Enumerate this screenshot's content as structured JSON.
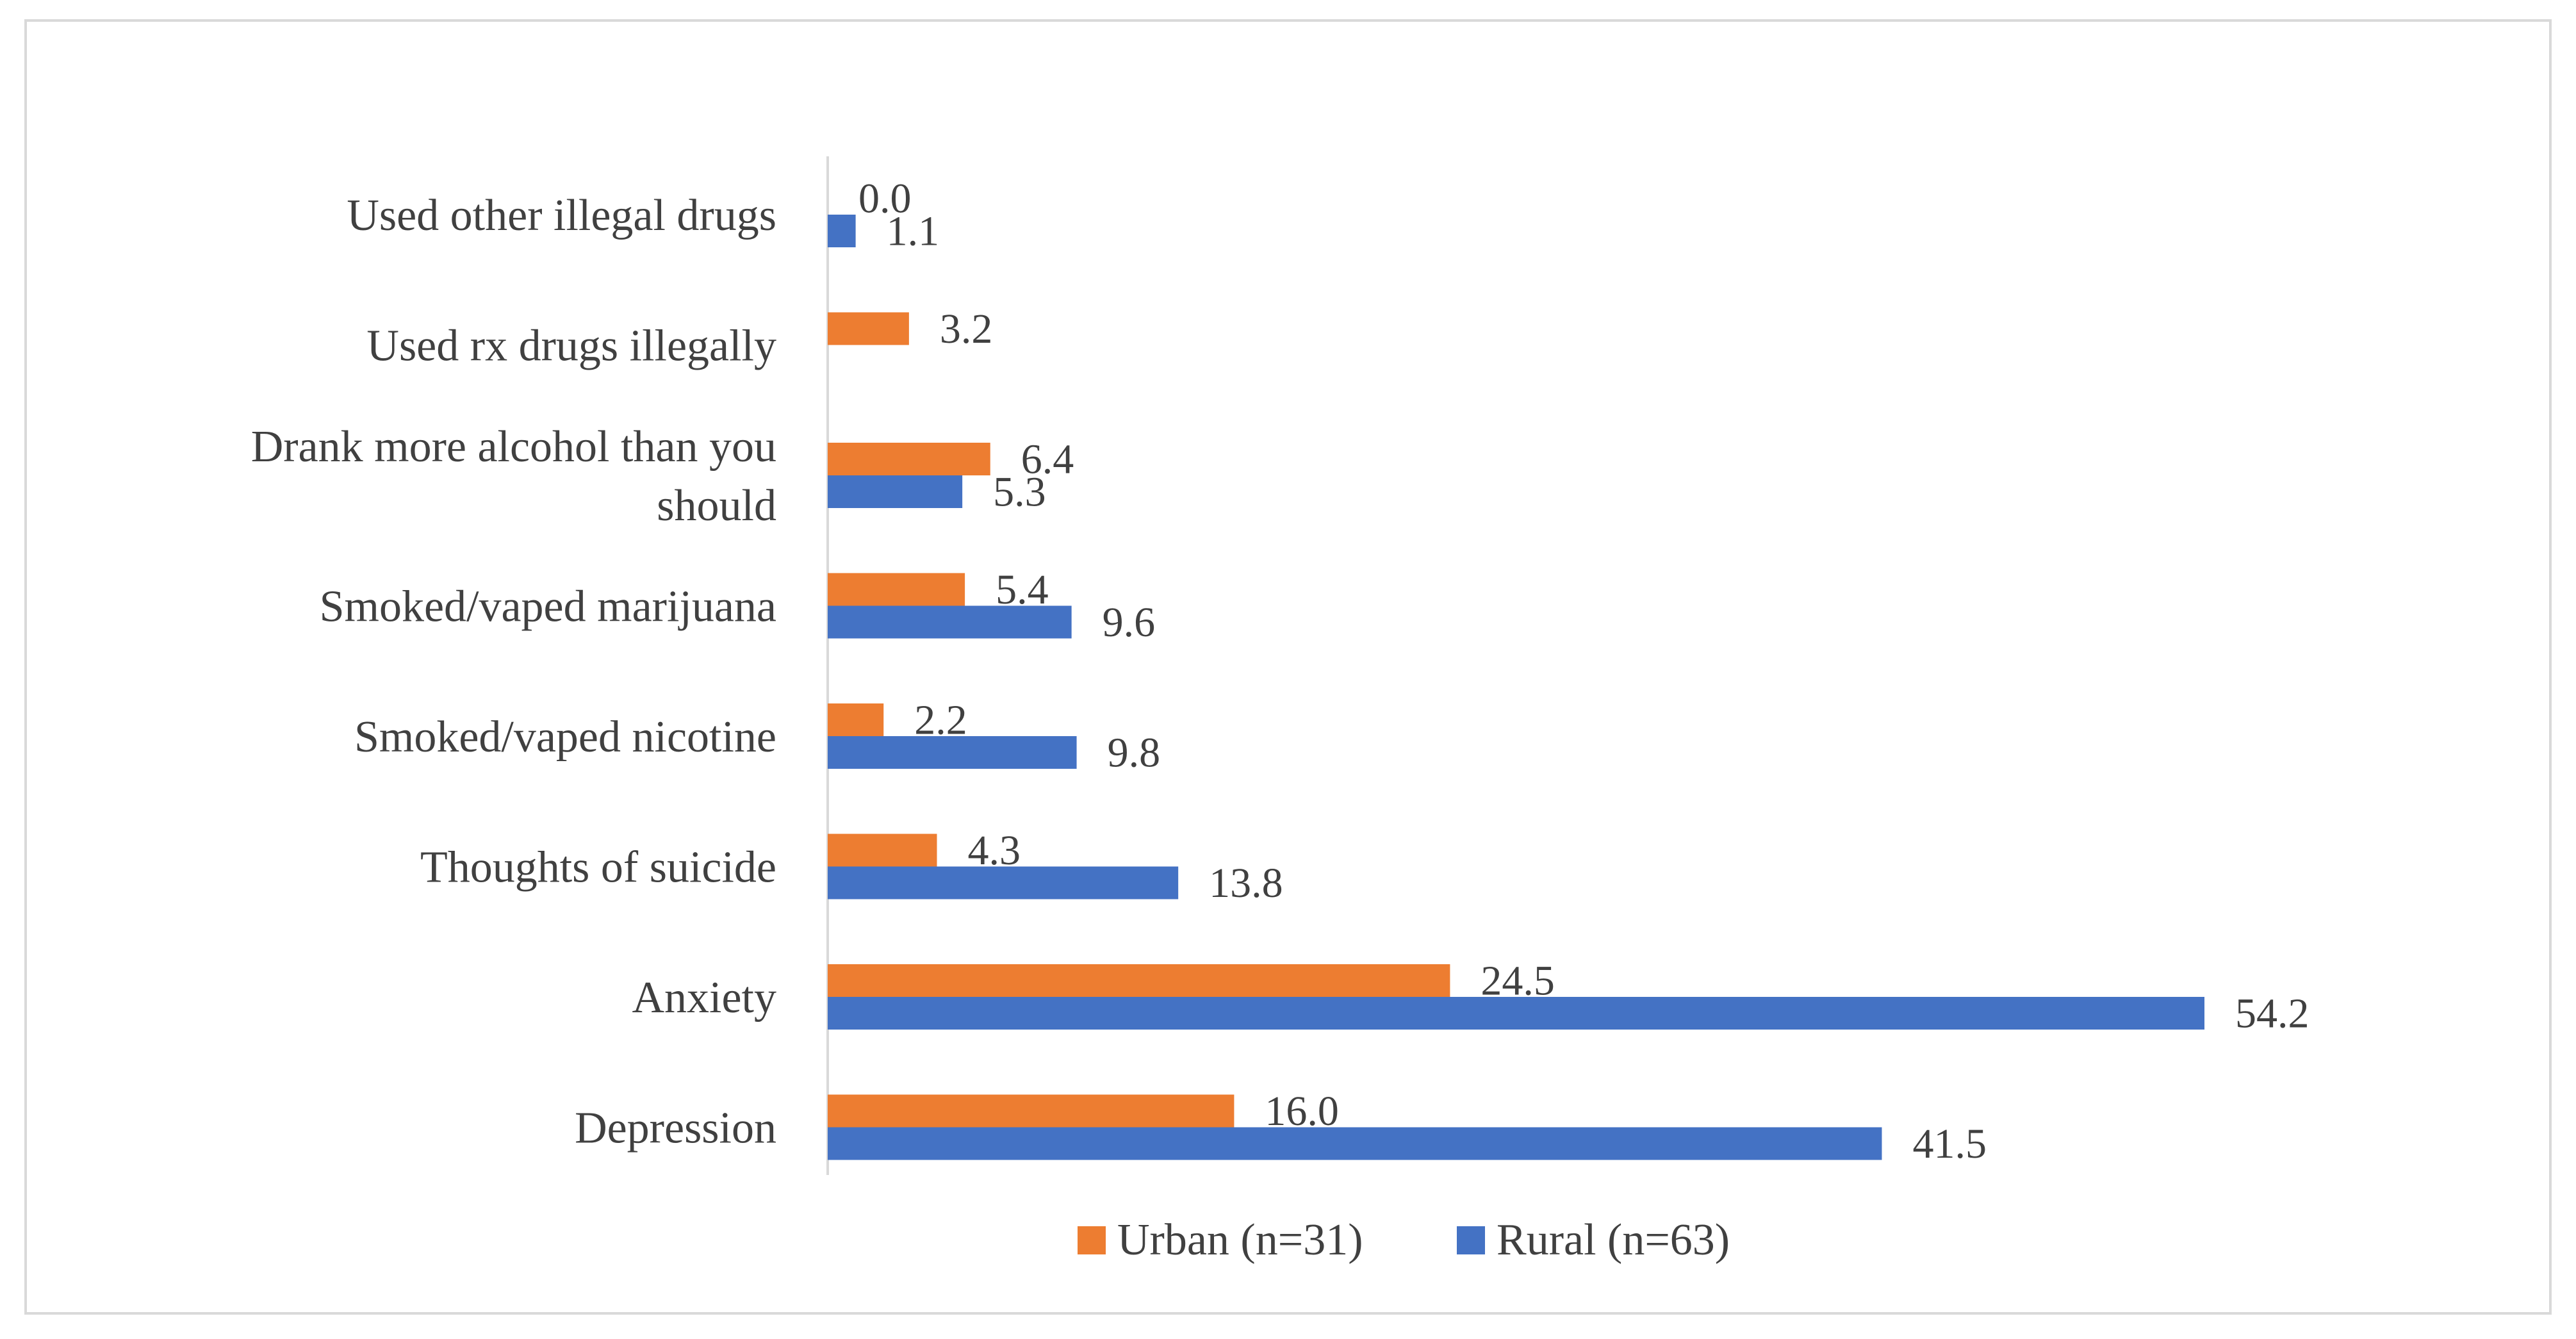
{
  "chart_data": {
    "type": "bar",
    "orientation": "horizontal",
    "title": "",
    "xlabel": "",
    "ylabel": "",
    "categories": [
      "Used other illegal drugs",
      "Used rx drugs illegally",
      "Drank more alcohol than you should",
      "Smoked/vaped marijuana",
      "Smoked/vaped nicotine",
      "Thoughts of suicide",
      "Anxiety",
      "Depression"
    ],
    "category_lines": [
      [
        "Used other illegal drugs"
      ],
      [
        "Used rx drugs illegally"
      ],
      [
        "Drank more alcohol than you",
        "should"
      ],
      [
        "Smoked/vaped marijuana"
      ],
      [
        "Smoked/vaped nicotine"
      ],
      [
        "Thoughts of suicide"
      ],
      [
        "Anxiety"
      ],
      [
        "Depression"
      ]
    ],
    "series": [
      {
        "name": "Urban (n=31)",
        "color": "#ED7D31",
        "values": [
          0.0,
          3.2,
          6.4,
          5.4,
          2.2,
          4.3,
          24.5,
          16.0
        ],
        "labels": [
          "0.0",
          "3.2",
          "6.4",
          "5.4",
          "2.2",
          "4.3",
          "24.5",
          "16.0"
        ]
      },
      {
        "name": "Rural (n=63)",
        "color": "#4472C4",
        "values": [
          1.1,
          null,
          5.3,
          9.6,
          9.8,
          13.8,
          54.2,
          41.5
        ],
        "labels": [
          "1.1",
          "",
          "5.3",
          "9.6",
          "9.8",
          "13.8",
          "54.2",
          "41.5"
        ]
      }
    ],
    "xlim": [
      0,
      60
    ],
    "grid": false,
    "axis_color": "#d9d9d9",
    "label_color": "#404040",
    "legend": {
      "position": "bottom",
      "entries": [
        "Urban (n=31)",
        "Rural (n=63)"
      ]
    }
  }
}
